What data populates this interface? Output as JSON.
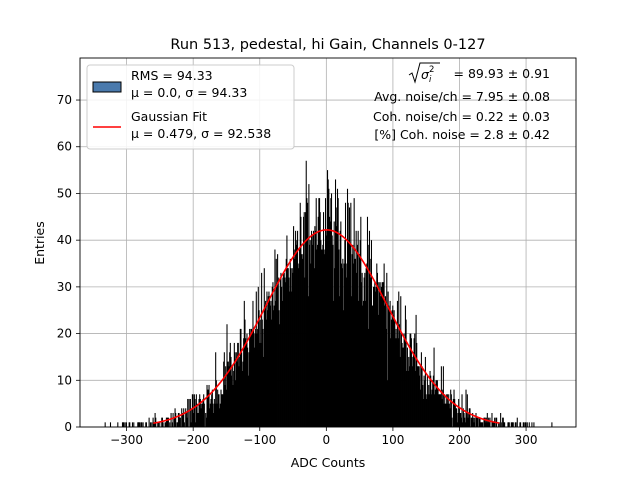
{
  "chart_data": {
    "type": "histogram",
    "title": "Run 513, pedestal, hi Gain, Channels 0-127",
    "xlabel": "ADC Counts",
    "ylabel": "Entries",
    "xlim": [
      -370,
      375
    ],
    "ylim": [
      0,
      79
    ],
    "x_ticks": [
      -300,
      -200,
      -100,
      0,
      100,
      200,
      300
    ],
    "x_tick_labels": [
      "−300",
      "−200",
      "−100",
      "0",
      "100",
      "200",
      "300"
    ],
    "y_ticks": [
      0,
      10,
      20,
      30,
      40,
      50,
      60,
      70
    ],
    "y_tick_labels": [
      "0",
      "10",
      "20",
      "30",
      "40",
      "50",
      "60",
      "70"
    ],
    "grid": true,
    "legend_placement": "top-left",
    "histogram": {
      "range": [
        -340,
        340
      ],
      "bin_width": 1,
      "peak_entries": 57,
      "color": "#000000"
    },
    "series": [
      {
        "name": "RMS = 94.33",
        "name_line2": "μ = 0.0, σ = 94.33",
        "kind": "histogram",
        "rms": 94.33,
        "mean": 0.0,
        "sigma": 94.33,
        "legend_color": "#4a7aad"
      },
      {
        "name": "Gaussian Fit",
        "name_line2": "μ = 0.479, σ = 92.538",
        "kind": "gaussian",
        "mean": 0.479,
        "sigma": 92.538,
        "amplitude": 42.2,
        "color": "#ff0000"
      }
    ],
    "annotations": {
      "line1_value": " = 89.93 ± 0.91",
      "line2": "Avg. noise/ch = 7.95 ± 0.08",
      "line3": "Coh. noise/ch = 0.22 ± 0.03",
      "line4": "[%] Coh. noise = 2.8 ± 0.42"
    }
  }
}
